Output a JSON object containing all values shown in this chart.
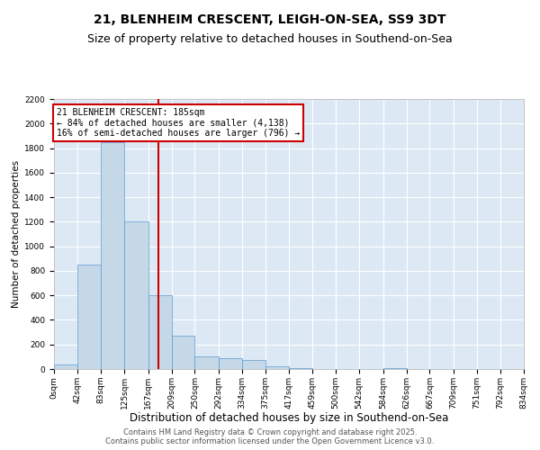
{
  "title": "21, BLENHEIM CRESCENT, LEIGH-ON-SEA, SS9 3DT",
  "subtitle": "Size of property relative to detached houses in Southend-on-Sea",
  "xlabel": "Distribution of detached houses by size in Southend-on-Sea",
  "ylabel": "Number of detached properties",
  "bin_edges": [
    0,
    42,
    83,
    125,
    167,
    209,
    250,
    292,
    334,
    375,
    417,
    459,
    500,
    542,
    584,
    626,
    667,
    709,
    751,
    792,
    834
  ],
  "bar_heights": [
    35,
    850,
    1850,
    1200,
    600,
    270,
    100,
    90,
    75,
    20,
    5,
    0,
    0,
    0,
    5,
    0,
    0,
    0,
    0,
    0
  ],
  "bar_color": "#c5d8e8",
  "bar_edge_color": "#5b9bd5",
  "property_size": 185,
  "vline_color": "#cc0000",
  "annotation_text": "21 BLENHEIM CRESCENT: 185sqm\n← 84% of detached houses are smaller (4,138)\n16% of semi-detached houses are larger (796) →",
  "annotation_box_color": "#ffffff",
  "annotation_border_color": "#cc0000",
  "ylim": [
    0,
    2200
  ],
  "yticks": [
    0,
    200,
    400,
    600,
    800,
    1000,
    1200,
    1400,
    1600,
    1800,
    2000,
    2200
  ],
  "bg_color": "#dce9f5",
  "fig_bg_color": "#ffffff",
  "grid_color": "#ffffff",
  "footer_text": "Contains HM Land Registry data © Crown copyright and database right 2025.\nContains public sector information licensed under the Open Government Licence v3.0.",
  "title_fontsize": 10,
  "subtitle_fontsize": 9,
  "xlabel_fontsize": 8.5,
  "ylabel_fontsize": 7.5,
  "tick_fontsize": 6.5,
  "annotation_fontsize": 7,
  "footer_fontsize": 6
}
